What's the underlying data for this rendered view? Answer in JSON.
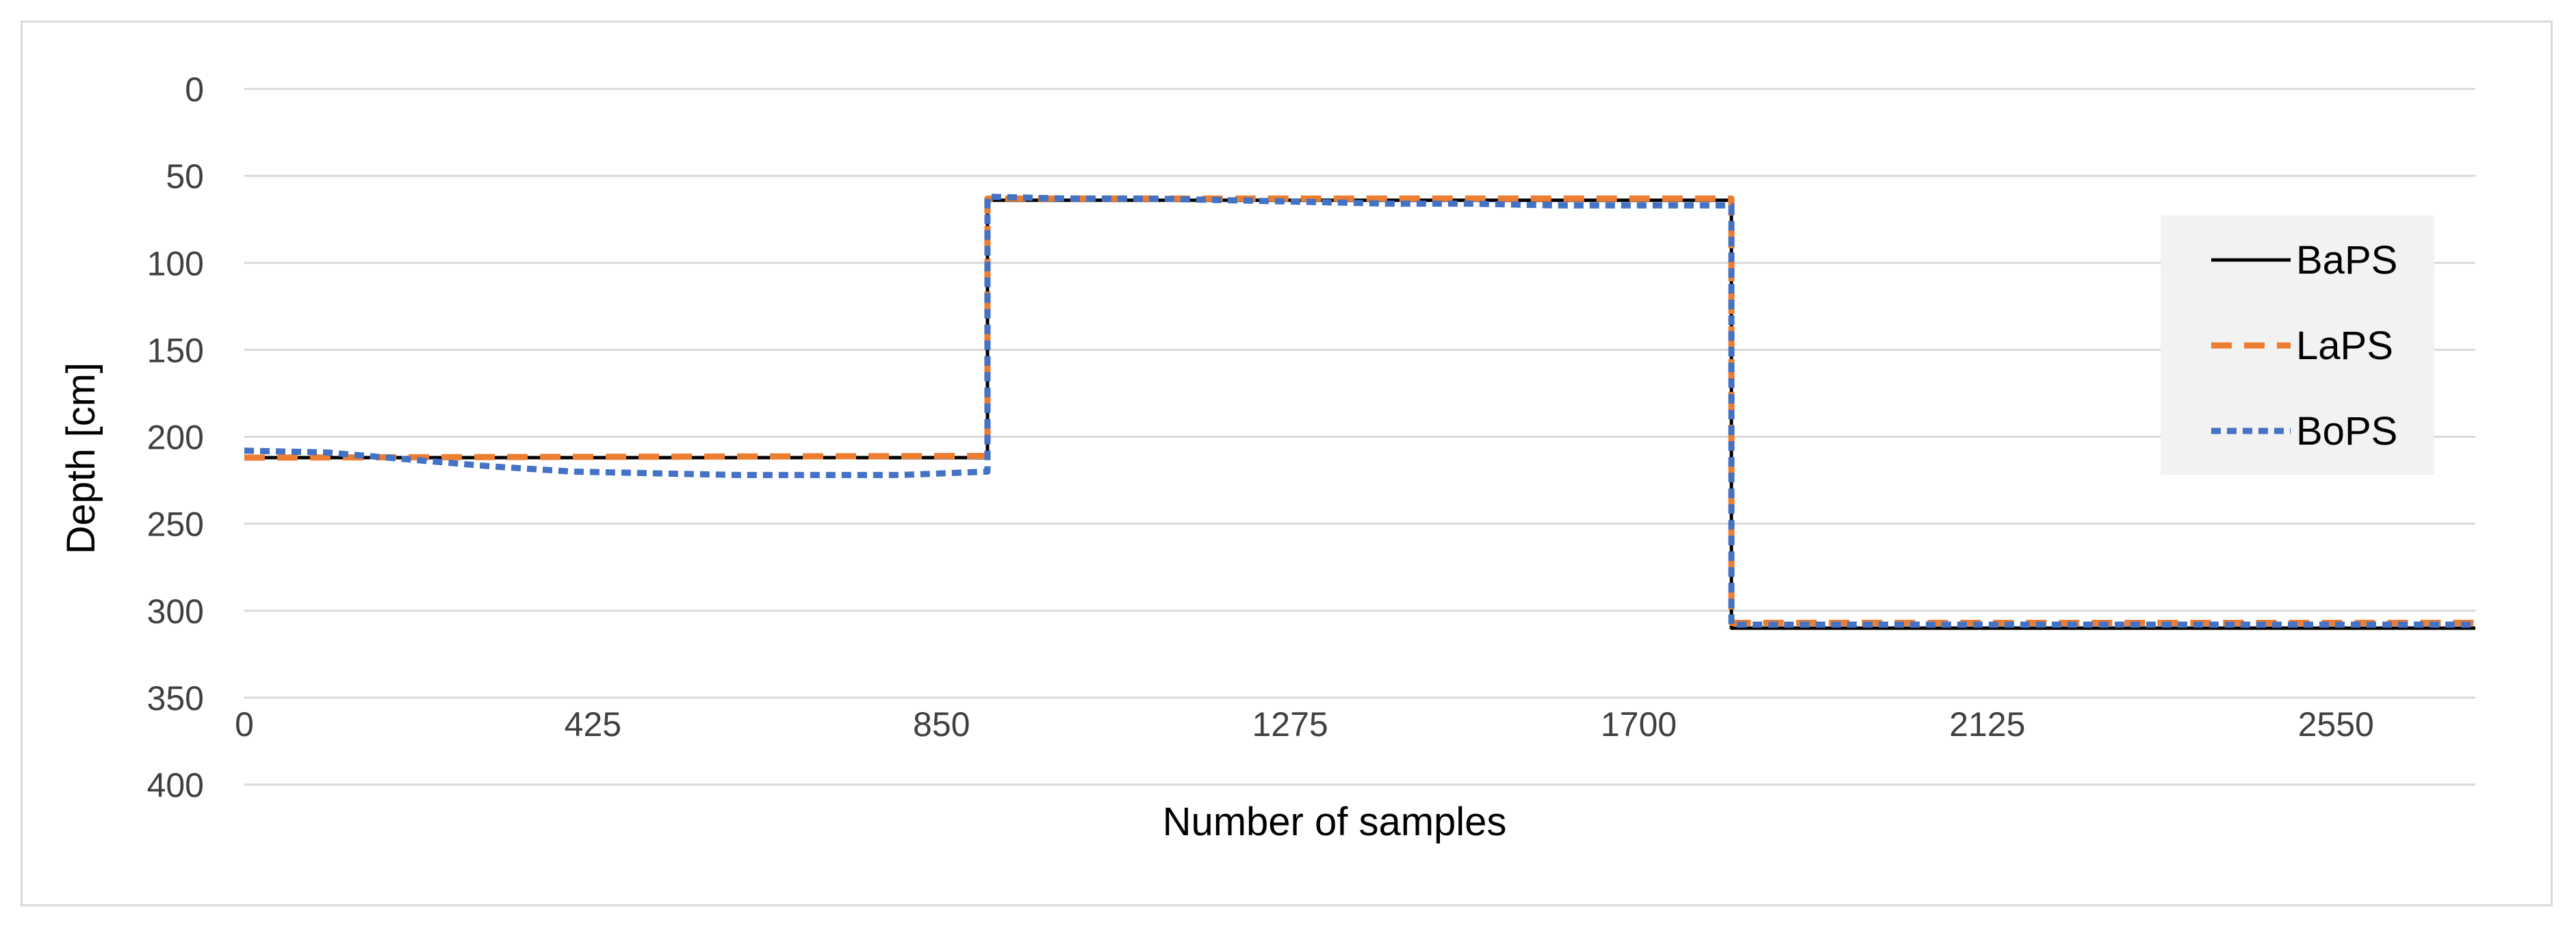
{
  "chart_data": {
    "type": "line",
    "title": "",
    "xlabel": "Number of samples",
    "ylabel": "Depth [cm]",
    "xlim": [
      0,
      2720
    ],
    "ylim": [
      0,
      400
    ],
    "y_inverted": true,
    "x_ticks": [
      "0",
      "425",
      "850",
      "1275",
      "1700",
      "2125",
      "2550"
    ],
    "x_tick_values": [
      0,
      425,
      850,
      1275,
      1700,
      2125,
      2550
    ],
    "y_ticks": [
      "0",
      "50",
      "100",
      "150",
      "200",
      "250",
      "300",
      "350",
      "400"
    ],
    "y_tick_values": [
      0,
      50,
      100,
      150,
      200,
      250,
      300,
      350,
      400
    ],
    "x_axis_at": 350,
    "grid": true,
    "legend_position": "right",
    "series": [
      {
        "name": "BaPS",
        "color": "#000000",
        "style": "solid",
        "points": [
          [
            0,
            212
          ],
          [
            906,
            212
          ],
          [
            906,
            64
          ],
          [
            1813,
            64
          ],
          [
            1813,
            310
          ],
          [
            2720,
            310
          ]
        ]
      },
      {
        "name": "LaPS",
        "color": "#ed7d31",
        "style": "dashed",
        "points": [
          [
            0,
            212
          ],
          [
            906,
            211
          ],
          [
            906,
            63
          ],
          [
            1813,
            63
          ],
          [
            1813,
            307
          ],
          [
            2720,
            307
          ]
        ]
      },
      {
        "name": "BoPS",
        "color": "#4472c4",
        "style": "dotted",
        "points": [
          [
            0,
            208
          ],
          [
            100,
            209
          ],
          [
            200,
            213
          ],
          [
            300,
            217
          ],
          [
            400,
            220
          ],
          [
            500,
            221
          ],
          [
            600,
            222
          ],
          [
            700,
            222
          ],
          [
            800,
            222
          ],
          [
            906,
            220
          ],
          [
            906,
            62
          ],
          [
            1000,
            63
          ],
          [
            1100,
            63
          ],
          [
            1200,
            64
          ],
          [
            1300,
            65
          ],
          [
            1400,
            66
          ],
          [
            1500,
            66
          ],
          [
            1600,
            67
          ],
          [
            1700,
            67
          ],
          [
            1813,
            67
          ],
          [
            1813,
            308
          ],
          [
            2720,
            308
          ]
        ]
      }
    ]
  }
}
